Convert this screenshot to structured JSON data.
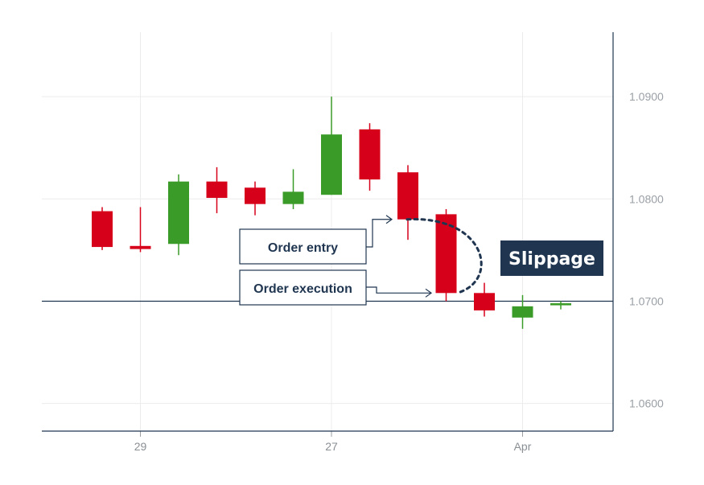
{
  "chart_data": {
    "type": "candlestick",
    "title": "",
    "xlabel": "",
    "ylabel": "",
    "ylim": [
      1.0573,
      1.0963
    ],
    "y_ticks": [
      "1.0900",
      "1.0800",
      "1.0700",
      "1.0600"
    ],
    "y_tick_values": [
      1.09,
      1.08,
      1.07,
      1.06
    ],
    "x_tick_labels": [
      {
        "label": "29",
        "index": 1
      },
      {
        "label": "27",
        "index": 6
      },
      {
        "label": "Apr",
        "index": 11
      }
    ],
    "reference_price": 1.07,
    "colors": {
      "up": "#3a9b28",
      "down": "#d7001a",
      "line": "#1f3550",
      "badge": "#1f3550"
    },
    "candles": [
      {
        "open": 1.0788,
        "high": 1.0792,
        "low": 1.075,
        "close": 1.0753
      },
      {
        "open": 1.0754,
        "high": 1.0792,
        "low": 1.0748,
        "close": 1.0751
      },
      {
        "open": 1.0756,
        "high": 1.0824,
        "low": 1.0745,
        "close": 1.0817
      },
      {
        "open": 1.0817,
        "high": 1.0831,
        "low": 1.0786,
        "close": 1.0801
      },
      {
        "open": 1.0811,
        "high": 1.0817,
        "low": 1.0784,
        "close": 1.0795
      },
      {
        "open": 1.0795,
        "high": 1.0829,
        "low": 1.079,
        "close": 1.0807
      },
      {
        "open": 1.0804,
        "high": 1.09,
        "low": 1.0804,
        "close": 1.0863
      },
      {
        "open": 1.0868,
        "high": 1.0874,
        "low": 1.0808,
        "close": 1.0819
      },
      {
        "open": 1.0826,
        "high": 1.0833,
        "low": 1.076,
        "close": 1.078
      },
      {
        "open": 1.0785,
        "high": 1.079,
        "low": 1.07,
        "close": 1.0708
      },
      {
        "open": 1.0708,
        "high": 1.0718,
        "low": 1.0685,
        "close": 1.0691
      },
      {
        "open": 1.0684,
        "high": 1.0706,
        "low": 1.0673,
        "close": 1.0695
      },
      {
        "open": 1.0696,
        "high": 1.07,
        "low": 1.0692,
        "close": 1.0698
      }
    ],
    "annotations": {
      "order_entry": "Order entry",
      "order_execution": "Order execution",
      "slippage": "Slippage"
    }
  }
}
